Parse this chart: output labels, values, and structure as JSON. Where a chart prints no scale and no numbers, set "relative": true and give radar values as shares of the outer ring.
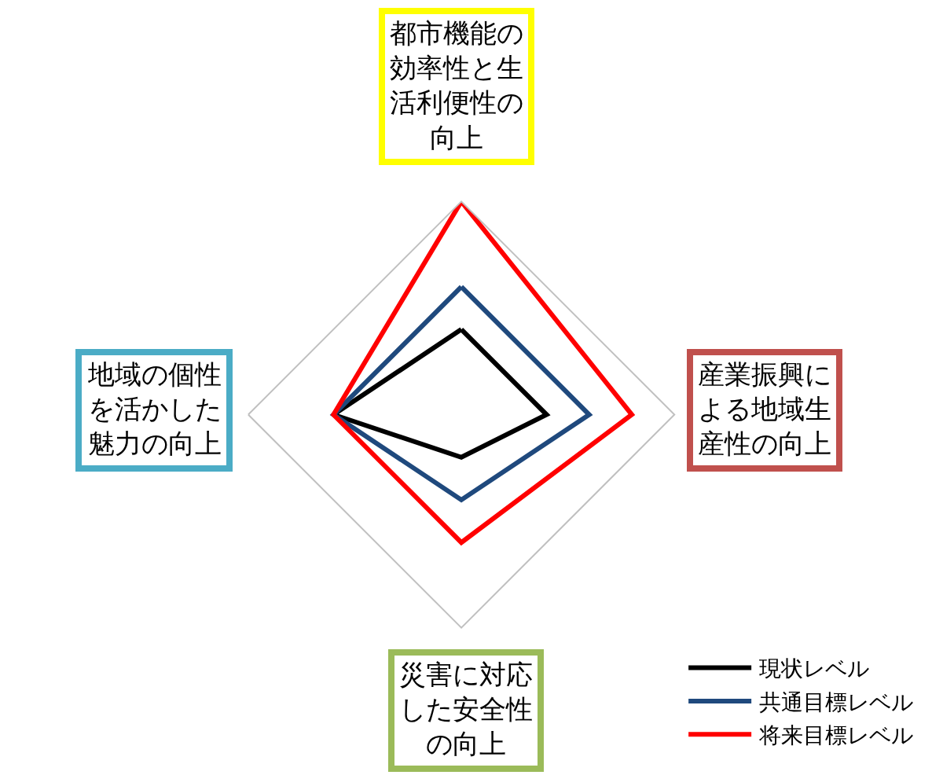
{
  "chart_data": {
    "type": "radar",
    "relative": true,
    "categories": [
      "都市機能の効率性と生活利便性の向上",
      "産業振興による地域生産性の向上",
      "災害に対応した安全性の向上",
      "地域の個性を活かした魅力の向上"
    ],
    "series": [
      {
        "name": "現状レベル",
        "color": "#000000",
        "values": [
          0.4,
          0.4,
          0.2,
          0.6
        ]
      },
      {
        "name": "共通目標レベル",
        "color": "#1f497d",
        "values": [
          0.6,
          0.6,
          0.4,
          0.6
        ]
      },
      {
        "name": "将来目標レベル",
        "color": "#ff0000",
        "values": [
          1.0,
          0.8,
          0.6,
          0.6
        ]
      }
    ],
    "legend": "bottom right",
    "marker": "none",
    "line_style": "solid"
  }
}
